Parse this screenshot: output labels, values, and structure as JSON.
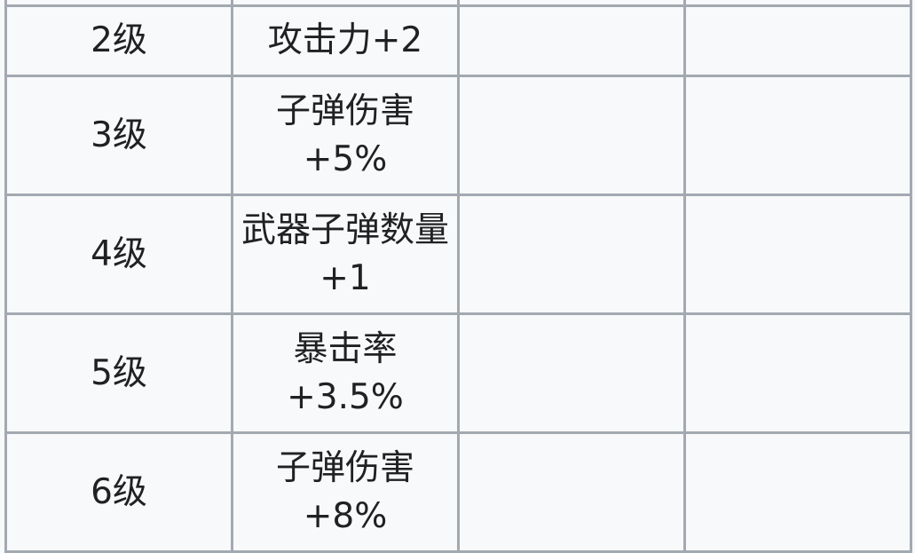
{
  "table": {
    "rows": [
      {
        "level": "2级",
        "effect": "攻击力+2",
        "col3": "",
        "col4": ""
      },
      {
        "level": "3级",
        "effect": "子弹伤害+5%",
        "col3": "",
        "col4": ""
      },
      {
        "level": "4级",
        "effect": "武器子弹数量+1",
        "col3": "",
        "col4": ""
      },
      {
        "level": "5级",
        "effect": "暴击率+3.5%",
        "col3": "",
        "col4": ""
      },
      {
        "level": "6级",
        "effect": "子弹伤害+8%",
        "col3": "",
        "col4": ""
      }
    ]
  },
  "colors": {
    "border": "#a2a9b1",
    "background": "#f8f9fa",
    "text": "#202122"
  }
}
